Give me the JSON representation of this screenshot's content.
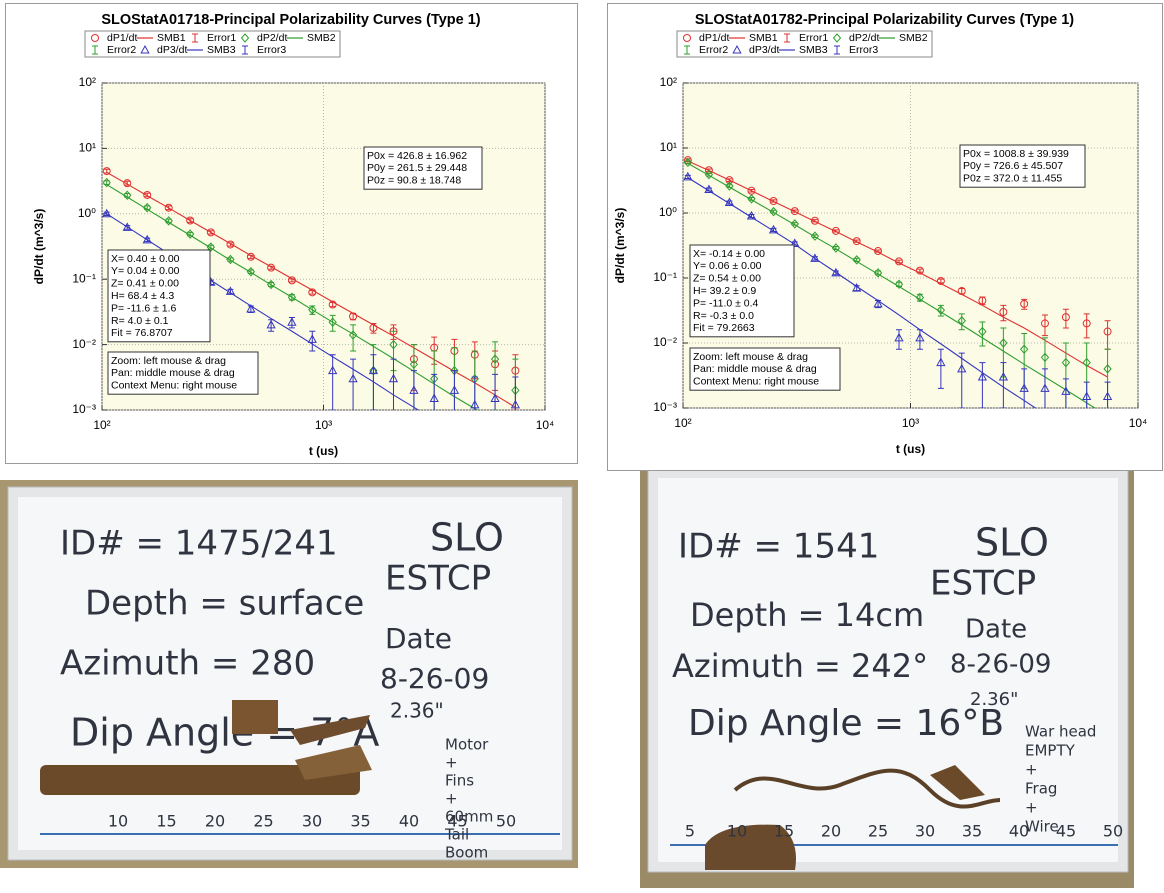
{
  "chart_data": [
    {
      "type": "scatter",
      "title": "SLOStatA01718-Principal Polarizability Curves (Type 1)",
      "x_label": "t (us)",
      "y_label": "dP/dt (m^3/s)",
      "log_x": true,
      "log_y": true,
      "grid": true,
      "xlim": [
        100,
        10000
      ],
      "ylim": [
        0.001,
        100
      ],
      "xticks": [
        {
          "value": 100,
          "label": "10²"
        },
        {
          "value": 1000,
          "label": "10³"
        },
        {
          "value": 10000,
          "label": "10⁴"
        }
      ],
      "yticks": [
        {
          "value": 0.001,
          "label": "10⁻³"
        },
        {
          "value": 0.01,
          "label": "10⁻²"
        },
        {
          "value": 0.1,
          "label": "10⁻¹"
        },
        {
          "value": 1,
          "label": "10⁰"
        },
        {
          "value": 10,
          "label": "10¹"
        },
        {
          "value": 100,
          "label": "10²"
        }
      ],
      "x": [
        105,
        130,
        160,
        200,
        250,
        310,
        380,
        470,
        580,
        720,
        890,
        1100,
        1360,
        1680,
        2070,
        2560,
        3160,
        3900,
        4820,
        5950,
        7350
      ],
      "series": [
        {
          "name": "dP1/dt",
          "fit_name": "SMB1",
          "error_name": "Error1",
          "color": "#e03030",
          "marker": "circle",
          "values": [
            4.5,
            2.94,
            1.94,
            1.24,
            0.79,
            0.52,
            0.34,
            0.22,
            0.15,
            0.096,
            0.063,
            0.041,
            0.027,
            0.018,
            0.016,
            0.006,
            0.009,
            0.008,
            0.007,
            0.005,
            0.004
          ],
          "errors": [
            0.3,
            0.2,
            0.12,
            0.08,
            0.05,
            0.03,
            0.02,
            0.012,
            0.008,
            0.005,
            0.004,
            0.003,
            0.003,
            0.003,
            0.004,
            0.004,
            0.004,
            0.004,
            0.004,
            0.003,
            0.003
          ],
          "fit": [
            4.3,
            2.85,
            1.89,
            1.23,
            0.79,
            0.52,
            0.35,
            0.23,
            0.155,
            0.102,
            0.068,
            0.045,
            0.03,
            0.02,
            0.0135,
            0.0089,
            0.0059,
            0.0039,
            0.0026,
            0.0017,
            0.0011
          ]
        },
        {
          "name": "dP2/dt",
          "fit_name": "SMB2",
          "error_name": "Error2",
          "color": "#2e9e2e",
          "marker": "diamond",
          "values": [
            3.0,
            1.92,
            1.24,
            0.78,
            0.49,
            0.31,
            0.2,
            0.13,
            0.083,
            0.053,
            0.034,
            0.022,
            0.014,
            0.004,
            0.01,
            0.005,
            0.003,
            0.004,
            0.003,
            0.006,
            0.002
          ],
          "errors": [
            0.2,
            0.12,
            0.08,
            0.05,
            0.03,
            0.02,
            0.012,
            0.008,
            0.006,
            0.005,
            0.005,
            0.006,
            0.006,
            0.006,
            0.006,
            0.005,
            0.005,
            0.005,
            0.005,
            0.005,
            0.004
          ],
          "fit": [
            2.8,
            1.8,
            1.17,
            0.74,
            0.47,
            0.3,
            0.195,
            0.127,
            0.082,
            0.053,
            0.034,
            0.022,
            0.0145,
            0.0094,
            0.0061,
            0.0039,
            0.0025,
            0.0016,
            0.00105,
            0.0007,
            0.00045
          ]
        },
        {
          "name": "dP3/dt",
          "fit_name": "SMB3",
          "error_name": "Error3",
          "color": "#3535c0",
          "marker": "triangle",
          "values": [
            1.0,
            0.62,
            0.4,
            0.24,
            0.15,
            0.09,
            0.065,
            0.035,
            0.02,
            0.022,
            0.012,
            0.004,
            0.003,
            0.004,
            0.003,
            0.002,
            0.0015,
            0.002,
            0.0012,
            0.0015,
            0.0012
          ],
          "errors": [
            0.06,
            0.04,
            0.025,
            0.015,
            0.01,
            0.007,
            0.005,
            0.004,
            0.004,
            0.004,
            0.004,
            0.003,
            0.003,
            0.003,
            0.003,
            0.002,
            0.002,
            0.002,
            0.002,
            0.002,
            0.002
          ],
          "fit": [
            1.0,
            0.63,
            0.4,
            0.245,
            0.155,
            0.096,
            0.062,
            0.039,
            0.025,
            0.016,
            0.0102,
            0.0065,
            0.0042,
            0.0027,
            0.0017,
            0.0011,
            0.0007,
            0.00045,
            0.0003,
            0.0002,
            0.00013
          ]
        }
      ],
      "annotations": {
        "fit": [
          "P0x = 426.8 ± 16.962",
          "P0y = 261.5 ± 29.448",
          "P0z = 90.8 ± 18.748"
        ],
        "location": [
          "X= 0.40 ± 0.00",
          "Y= 0.04 ± 0.00",
          "Z= 0.41 ± 0.00",
          "H= 68.4 ± 4.3",
          "P= -11.6 ± 1.6",
          "R= 4.0 ± 0.1",
          "Fit = 76.8707"
        ],
        "help": [
          "Zoom: left mouse & drag",
          "Pan: middle mouse & drag",
          "Context Menu: right mouse"
        ]
      }
    },
    {
      "type": "scatter",
      "title": "SLOStatA01782-Principal Polarizability Curves (Type 1)",
      "x_label": "t (us)",
      "y_label": "dP/dt (m^3/s)",
      "log_x": true,
      "log_y": true,
      "grid": true,
      "xlim": [
        100,
        10000
      ],
      "ylim": [
        0.001,
        100
      ],
      "xticks": [
        {
          "value": 100,
          "label": "10²"
        },
        {
          "value": 1000,
          "label": "10³"
        },
        {
          "value": 10000,
          "label": "10⁴"
        }
      ],
      "yticks": [
        {
          "value": 0.001,
          "label": "10⁻³"
        },
        {
          "value": 0.01,
          "label": "10⁻²"
        },
        {
          "value": 0.1,
          "label": "10⁻¹"
        },
        {
          "value": 1,
          "label": "10⁰"
        },
        {
          "value": 10,
          "label": "10¹"
        },
        {
          "value": 100,
          "label": "10²"
        }
      ],
      "x": [
        105,
        130,
        160,
        200,
        250,
        310,
        380,
        470,
        580,
        720,
        890,
        1100,
        1360,
        1680,
        2070,
        2560,
        3160,
        3900,
        4820,
        5950,
        7350
      ],
      "series": [
        {
          "name": "dP1/dt",
          "fit_name": "SMB1",
          "error_name": "Error1",
          "color": "#e03030",
          "marker": "circle",
          "values": [
            6.5,
            4.55,
            3.2,
            2.2,
            1.53,
            1.07,
            0.76,
            0.53,
            0.37,
            0.26,
            0.18,
            0.13,
            0.09,
            0.063,
            0.045,
            0.03,
            0.04,
            0.02,
            0.025,
            0.02,
            0.015
          ],
          "errors": [
            0.3,
            0.2,
            0.15,
            0.1,
            0.06,
            0.04,
            0.03,
            0.02,
            0.015,
            0.01,
            0.008,
            0.007,
            0.006,
            0.006,
            0.006,
            0.008,
            0.007,
            0.007,
            0.008,
            0.008,
            0.007
          ],
          "fit": [
            6.3,
            4.5,
            3.2,
            2.2,
            1.5,
            1.05,
            0.74,
            0.52,
            0.36,
            0.25,
            0.17,
            0.12,
            0.082,
            0.056,
            0.038,
            0.025,
            0.017,
            0.011,
            0.007,
            0.0045,
            0.003
          ]
        },
        {
          "name": "dP2/dt",
          "fit_name": "SMB2",
          "error_name": "Error2",
          "color": "#2e9e2e",
          "marker": "diamond",
          "values": [
            6.0,
            3.9,
            2.6,
            1.65,
            1.05,
            0.68,
            0.44,
            0.29,
            0.19,
            0.12,
            0.08,
            0.05,
            0.032,
            0.022,
            0.015,
            0.01,
            0.008,
            0.006,
            0.005,
            0.005,
            0.004
          ],
          "errors": [
            0.3,
            0.2,
            0.12,
            0.08,
            0.05,
            0.03,
            0.02,
            0.015,
            0.01,
            0.008,
            0.006,
            0.006,
            0.006,
            0.006,
            0.006,
            0.007,
            0.006,
            0.006,
            0.005,
            0.005,
            0.004
          ],
          "fit": [
            5.8,
            3.8,
            2.5,
            1.6,
            1.02,
            0.66,
            0.43,
            0.28,
            0.18,
            0.115,
            0.074,
            0.047,
            0.03,
            0.019,
            0.012,
            0.0075,
            0.0047,
            0.003,
            0.0019,
            0.0012,
            0.00075
          ]
        },
        {
          "name": "dP3/dt",
          "fit_name": "SMB3",
          "error_name": "Error3",
          "color": "#3535c0",
          "marker": "triangle",
          "values": [
            3.6,
            2.3,
            1.45,
            0.9,
            0.55,
            0.34,
            0.2,
            0.12,
            0.07,
            0.04,
            0.012,
            0.012,
            0.005,
            0.004,
            0.003,
            0.003,
            0.002,
            0.002,
            0.0018,
            0.0015,
            0.0015
          ],
          "errors": [
            0.2,
            0.12,
            0.08,
            0.05,
            0.03,
            0.02,
            0.012,
            0.008,
            0.006,
            0.005,
            0.004,
            0.004,
            0.003,
            0.003,
            0.002,
            0.002,
            0.002,
            0.002,
            0.001,
            0.001,
            0.001
          ],
          "fit": [
            3.5,
            2.2,
            1.4,
            0.86,
            0.53,
            0.33,
            0.2,
            0.122,
            0.074,
            0.045,
            0.027,
            0.016,
            0.0097,
            0.0058,
            0.0035,
            0.0021,
            0.0013,
            0.0008,
            0.0005,
            0.0003,
            0.0002
          ]
        }
      ],
      "annotations": {
        "fit": [
          "P0x = 1008.8 ± 39.939",
          "P0y = 726.6 ± 45.507",
          "P0z = 372.0 ± 11.455"
        ],
        "location": [
          "X= -0.14 ± 0.00",
          "Y= 0.06 ± 0.00",
          "Z= 0.54 ± 0.00",
          "H= 39.2 ± 0.9",
          "P= -11.0 ± 0.4",
          "R= -0.3 ± 0.0",
          "Fit = 79.2663"
        ],
        "help": [
          "Zoom: left mouse & drag",
          "Pan: middle mouse & drag",
          "Context Menu: right mouse"
        ]
      }
    }
  ],
  "photos": [
    {
      "id": "ID# = 1475/241",
      "site": [
        "SLO",
        "ESTCP"
      ],
      "depth": "Depth = surface",
      "azimuth": "Azimuth = 280",
      "dip": "Dip Angle = 7°A",
      "date_label": "Date",
      "date": "8-26-09",
      "size": "2.36\"",
      "note": [
        "Motor",
        "+",
        "Fins",
        "+",
        "60mm",
        "Tail",
        "Boom"
      ],
      "ruler": [
        "10",
        "15",
        "20",
        "25",
        "30",
        "35",
        "40",
        "45",
        "50"
      ]
    },
    {
      "id": "ID# = 1541",
      "site": [
        "SLO",
        "ESTCP"
      ],
      "depth": "Depth = 14cm",
      "azimuth": "Azimuth = 242°",
      "dip": "Dip Angle = 16°B",
      "date_label": "Date",
      "date": "8-26-09",
      "size": "2.36\"",
      "note": [
        "War head",
        "EMPTY",
        "+",
        "Frag",
        "+",
        "Wire"
      ],
      "ruler": [
        "5",
        "10",
        "15",
        "20",
        "25",
        "30",
        "35",
        "40",
        "45",
        "50"
      ]
    }
  ]
}
